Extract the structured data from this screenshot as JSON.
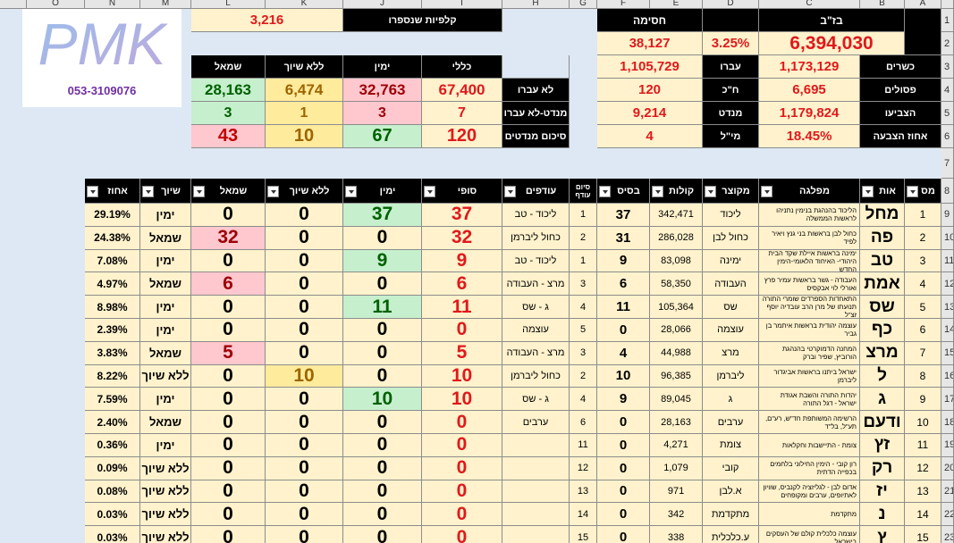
{
  "column_letters": [
    "O",
    "N",
    "M",
    "L",
    "K",
    "J",
    "I",
    "H",
    "G",
    "F",
    "E",
    "D",
    "C",
    "B",
    "A"
  ],
  "row_numbers": [
    "1",
    "2",
    "3",
    "4",
    "5",
    "6",
    "7",
    "8",
    "9",
    "10",
    "11",
    "12",
    "13",
    "14",
    "15",
    "16",
    "17",
    "18",
    "19",
    "20",
    "21",
    "22",
    "23"
  ],
  "logo": "PMK",
  "phone": "053-3109076",
  "blocs": {
    "counted_label": "קלפיות שנספרו",
    "counted": "3,216",
    "headers": [
      "שמאל",
      "ללא שיוך",
      "ימין",
      "כללי"
    ],
    "rows": [
      {
        "label": "לא עברו",
        "values": [
          "28,163",
          "6,474",
          "32,763",
          "67,400"
        ]
      },
      {
        "label": "מנדט-לא עברו",
        "values": [
          "3",
          "1",
          "3",
          "7"
        ]
      },
      {
        "label": "סיכום מנדטים",
        "values": [
          "43",
          "10",
          "67",
          "120"
        ]
      }
    ]
  },
  "summary": {
    "threshold_title": "חסימה",
    "eligible_title": "בז\"ב",
    "threshold_votes": "38,127",
    "threshold_pct": "3.25%",
    "eligible": "6,394,030",
    "rows": [
      {
        "left_value": "1,105,729",
        "left_label": "עברו",
        "right_value": "1,173,129",
        "right_label": "כשרים"
      },
      {
        "left_value": "120",
        "left_label": "ח\"כ",
        "right_value": "6,695",
        "right_label": "פסולים"
      },
      {
        "left_value": "9,214",
        "left_label": "מנדט",
        "right_value": "1,179,824",
        "right_label": "הצביעו"
      },
      {
        "left_value": "4",
        "left_label": "מי\"ל",
        "right_value": "18.45%",
        "right_label": "אחוז הצבעה"
      }
    ]
  },
  "table": {
    "headers": [
      "מס",
      "אות",
      "מפלגה",
      "מקוצר",
      "קולות",
      "בסיס",
      "סיום עודף",
      "עודפים",
      "סופי",
      "ימין",
      "ללא שיוך",
      "שמאל",
      "שיוך",
      "אחוז"
    ],
    "rows": [
      [
        "1",
        "מחל",
        "הליכוד בהנהגת בנימין נתניהו לראשות הממשלה",
        "ליכוד",
        "342,471",
        "37",
        "1",
        "ליכוד - טב",
        "37",
        "37",
        "0",
        "0",
        "ימין",
        "29.19%"
      ],
      [
        "2",
        "פה",
        "כחול לבן בראשות בני גנץ ויאיר לפיד",
        "כחול לבן",
        "286,028",
        "31",
        "2",
        "כחול ליברמן",
        "32",
        "0",
        "0",
        "32",
        "שמאל",
        "24.38%"
      ],
      [
        "3",
        "טב",
        "ימינה בראשות איילת שקד הבית היהודי- האיחוד הלאומי-הימין החדש",
        "ימינה",
        "83,098",
        "9",
        "1",
        "ליכוד - טב",
        "9",
        "9",
        "0",
        "0",
        "ימין",
        "7.08%"
      ],
      [
        "4",
        "אמת",
        "העבודה - גשר בראשות עמיר פרץ ואורלי לוי אבקסיס",
        "העבודה",
        "58,350",
        "6",
        "3",
        "מרצ - העבודה",
        "6",
        "0",
        "0",
        "6",
        "שמאל",
        "4.97%"
      ],
      [
        "5",
        "שס",
        "התאחדות הספרדים שומרי התורה תנועתו של מרן הרב עובדיה יוסף זצ\"ל",
        "שס",
        "105,364",
        "11",
        "4",
        "ג - שס",
        "11",
        "11",
        "0",
        "0",
        "ימין",
        "8.98%"
      ],
      [
        "6",
        "כף",
        "עוצמה יהודית בראשות איתמר בן גביר",
        "עוצמה",
        "28,066",
        "0",
        "5",
        "עוצמה",
        "0",
        "0",
        "0",
        "0",
        "ימין",
        "2.39%"
      ],
      [
        "7",
        "מרצ",
        "המחנה הדמוקרטי בהנהגת הורוביץ, שפיר וברק",
        "מרצ",
        "44,988",
        "4",
        "3",
        "מרצ - העבודה",
        "5",
        "0",
        "0",
        "5",
        "שמאל",
        "3.83%"
      ],
      [
        "8",
        "ל",
        "ישראל ביתנו בראשות אביגדור ליברמן",
        "ליברמן",
        "96,385",
        "10",
        "2",
        "כחול ליברמן",
        "10",
        "0",
        "10",
        "0",
        "ללא שיוך",
        "8.22%"
      ],
      [
        "9",
        "ג",
        "יהדות התורה והשבת אגודת ישראל - דגל התורה",
        "ג",
        "89,045",
        "9",
        "4",
        "ג - שס",
        "10",
        "10",
        "0",
        "0",
        "ימין",
        "7.59%"
      ],
      [
        "10",
        "ודעם",
        "הרשימה המשותפת חד\"ש, רע\"ם, תע\"ל, בל\"ד",
        "ערבים",
        "28,163",
        "0",
        "6",
        "ערבים",
        "0",
        "0",
        "0",
        "0",
        "שמאל",
        "2.40%"
      ],
      [
        "11",
        "זץ",
        "צומת - התיישבות וחקלאות",
        "צומת",
        "4,271",
        "0",
        "11",
        null,
        "0",
        "0",
        "0",
        "0",
        "ימין",
        "0.36%"
      ],
      [
        "12",
        "רק",
        "רון קובי - הימין החילוני בלחמים בכפייה הדתית",
        "קובי",
        "1,079",
        "0",
        "12",
        null,
        "0",
        "0",
        "0",
        "0",
        "ללא שיוך",
        "0.09%"
      ],
      [
        "13",
        "יז",
        "אדום לבן - לגליזציה לקנביס, שוויון לאתיופים, ערבים ומקופחים",
        "א.לבן",
        "971",
        "0",
        "13",
        null,
        "0",
        "0",
        "0",
        "0",
        "ללא שיוך",
        "0.08%"
      ],
      [
        "14",
        "נ",
        "מתקדמת",
        "מתקדמת",
        "342",
        "0",
        "14",
        null,
        "0",
        "0",
        "0",
        "0",
        "ללא שיוך",
        "0.03%"
      ],
      [
        "15",
        "ץ",
        "עוצמה כלכלית קולם של העסקים בישראל",
        "ע.כלכלית",
        "338",
        "0",
        "15",
        null,
        "0",
        "0",
        "0",
        "0",
        "ללא שיוך",
        "0.03%"
      ]
    ]
  }
}
